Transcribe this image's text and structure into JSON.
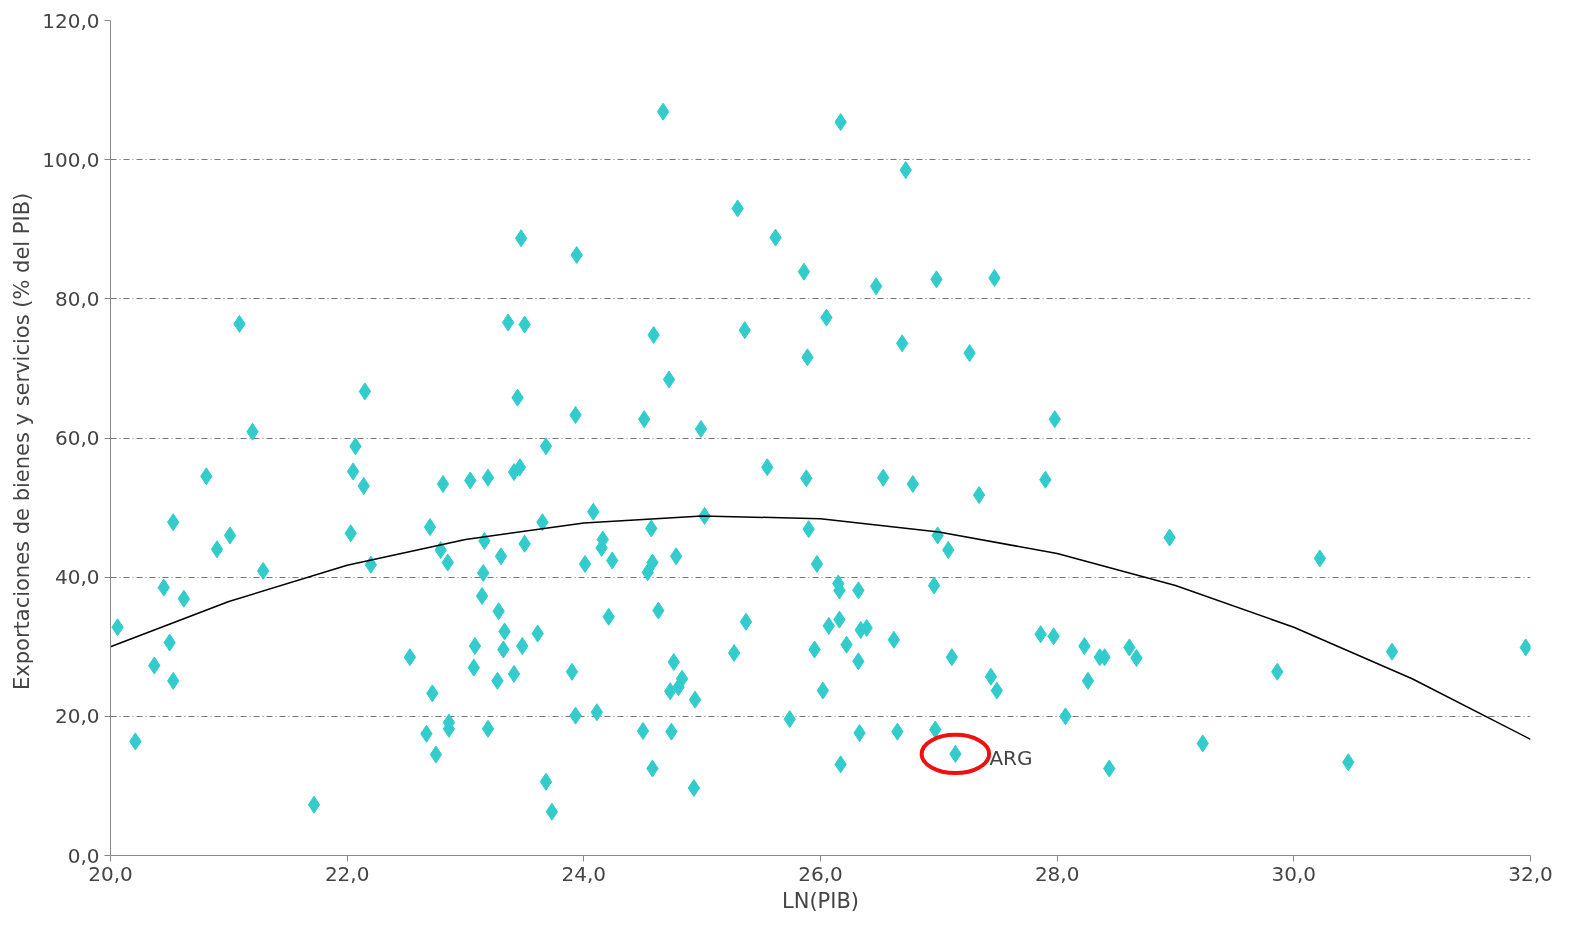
{
  "chart_data": {
    "type": "scatter",
    "xlabel": "LN(PIB)",
    "ylabel": "Exportaciones de bienes y servicios  (% del PIB)",
    "xlim": [
      20,
      32
    ],
    "ylim": [
      0,
      120
    ],
    "xticks": [
      {
        "value": 20,
        "label": "20,0"
      },
      {
        "value": 22,
        "label": "22,0"
      },
      {
        "value": 24,
        "label": "24,0"
      },
      {
        "value": 26,
        "label": "26,0"
      },
      {
        "value": 28,
        "label": "28,0"
      },
      {
        "value": 30,
        "label": "30,0"
      },
      {
        "value": 32,
        "label": "32,0"
      }
    ],
    "yticks": [
      {
        "value": 0,
        "label": "0,0"
      },
      {
        "value": 20,
        "label": "20,0"
      },
      {
        "value": 40,
        "label": "40,0"
      },
      {
        "value": 60,
        "label": "60,0"
      },
      {
        "value": 80,
        "label": "80,0"
      },
      {
        "value": 100,
        "label": "100,0"
      },
      {
        "value": 120,
        "label": "120,0"
      }
    ],
    "grid": "y",
    "annotations": [
      {
        "text": "ARG",
        "x": 27.14,
        "y": 14.6
      }
    ],
    "series": [
      {
        "color": "#33cccc",
        "marker": "diamond",
        "x": [
          20.06,
          20.21,
          20.37,
          20.45,
          20.5,
          20.53,
          20.53,
          20.62,
          20.81,
          20.9,
          21.01,
          21.09,
          21.2,
          21.29,
          21.72,
          22.03,
          22.05,
          22.07,
          22.14,
          22.15,
          22.2,
          22.53,
          22.67,
          22.7,
          22.72,
          22.75,
          22.79,
          22.81,
          22.85,
          22.86,
          22.86,
          23.04,
          23.07,
          23.08,
          23.14,
          23.15,
          23.16,
          23.19,
          23.19,
          23.27,
          23.28,
          23.3,
          23.32,
          23.33,
          23.36,
          23.41,
          23.41,
          23.44,
          23.46,
          23.47,
          23.48,
          23.5,
          23.5,
          23.61,
          23.65,
          23.68,
          23.68,
          23.73,
          23.9,
          23.93,
          23.93,
          23.94,
          24.01,
          24.08,
          24.11,
          24.15,
          24.16,
          24.21,
          24.24,
          24.5,
          24.51,
          24.54,
          24.57,
          24.58,
          24.58,
          24.59,
          24.63,
          24.67,
          24.72,
          24.73,
          24.74,
          24.76,
          24.78,
          24.8,
          24.83,
          24.93,
          24.94,
          24.99,
          25.02,
          25.27,
          25.3,
          25.36,
          25.37,
          25.55,
          25.62,
          25.74,
          25.86,
          25.88,
          25.89,
          25.9,
          25.95,
          25.97,
          26.02,
          26.05,
          26.07,
          26.15,
          26.16,
          26.16,
          26.17,
          26.17,
          26.22,
          26.32,
          26.32,
          26.33,
          26.34,
          26.39,
          26.47,
          26.53,
          26.62,
          26.65,
          26.69,
          26.72,
          26.78,
          26.96,
          26.98,
          26.99,
          26.97,
          27.08,
          27.11,
          27.14,
          27.26,
          27.34,
          27.44,
          27.47,
          27.49,
          27.86,
          27.9,
          27.97,
          27.98,
          28.07,
          28.23,
          28.26,
          28.36,
          28.4,
          28.44,
          28.61,
          28.67,
          28.95,
          29.23,
          29.86,
          30.22,
          30.46,
          30.83,
          31.96
        ],
        "values": [
          32.8,
          16.4,
          27.3,
          38.5,
          30.6,
          47.9,
          25.1,
          36.9,
          54.5,
          44.0,
          46.0,
          76.4,
          60.9,
          40.9,
          7.3,
          46.3,
          55.2,
          58.8,
          53.1,
          66.7,
          41.8,
          28.5,
          17.5,
          47.2,
          23.3,
          14.5,
          43.9,
          53.4,
          42.1,
          19.1,
          18.2,
          53.9,
          27.0,
          30.1,
          37.3,
          40.6,
          45.2,
          54.3,
          18.2,
          25.1,
          35.1,
          43.0,
          29.6,
          32.2,
          76.6,
          55.1,
          26.1,
          65.8,
          55.8,
          88.7,
          30.1,
          76.3,
          44.8,
          31.9,
          47.9,
          58.8,
          10.6,
          6.3,
          26.4,
          63.3,
          20.1,
          86.3,
          41.9,
          49.4,
          20.6,
          44.2,
          45.4,
          34.3,
          42.4,
          17.9,
          62.7,
          40.7,
          47.0,
          12.5,
          42.1,
          74.8,
          35.2,
          106.9,
          68.4,
          23.6,
          17.8,
          27.8,
          43.0,
          24.2,
          25.4,
          9.7,
          22.4,
          61.3,
          48.8,
          29.1,
          93.0,
          75.5,
          33.6,
          55.8,
          88.8,
          19.6,
          83.9,
          54.2,
          71.6,
          46.9,
          29.6,
          41.9,
          23.7,
          77.3,
          33.0,
          39.1,
          33.9,
          38.1,
          105.4,
          13.1,
          30.3,
          38.1,
          27.9,
          17.6,
          32.4,
          32.7,
          81.8,
          54.3,
          31.0,
          17.8,
          73.6,
          98.5,
          53.4,
          38.8,
          82.8,
          46.0,
          18.1,
          43.9,
          28.5,
          14.6,
          72.2,
          51.8,
          25.7,
          83.0,
          23.7,
          31.8,
          54.0,
          31.5,
          62.7,
          20.0,
          30.1,
          25.1,
          28.5,
          28.5,
          12.5,
          29.9,
          28.4,
          45.7,
          16.1,
          26.4,
          42.7,
          13.4,
          29.3,
          29.9
        ]
      },
      {
        "type": "line",
        "color": "#000000",
        "marker": "none",
        "line_style": "solid",
        "x": [
          20,
          21,
          22,
          23,
          24,
          25,
          26,
          27,
          28,
          29,
          30,
          31,
          32
        ],
        "values": [
          30.0,
          36.5,
          41.7,
          45.4,
          47.8,
          48.8,
          48.4,
          46.5,
          43.4,
          38.8,
          32.8,
          25.4,
          16.7
        ]
      }
    ]
  }
}
